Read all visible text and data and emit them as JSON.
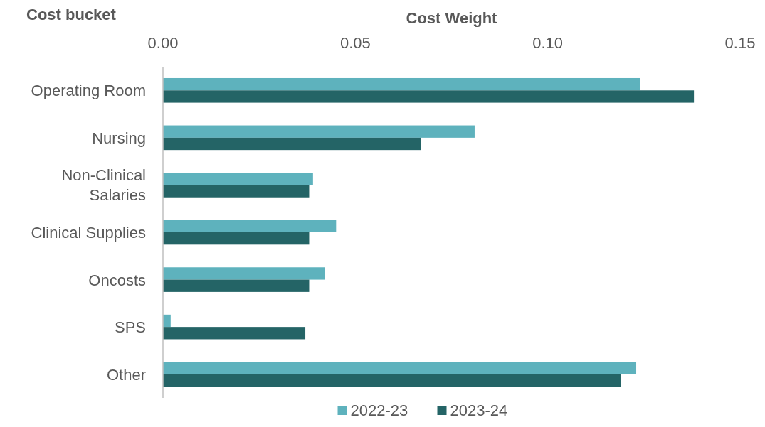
{
  "chart_data": {
    "type": "bar",
    "orientation": "horizontal",
    "xlabel": "Cost Weight",
    "ylabel": "Cost bucket",
    "categories": [
      "Operating Room",
      "Nursing",
      "Non-Clinical Salaries",
      "Clinical Supplies",
      "Oncosts",
      "SPS",
      "Other"
    ],
    "series": [
      {
        "name": "2022-23",
        "color": "#5eb2bd",
        "values": [
          0.124,
          0.081,
          0.039,
          0.045,
          0.042,
          0.002,
          0.123
        ]
      },
      {
        "name": "2023-24",
        "color": "#246466",
        "values": [
          0.138,
          0.067,
          0.038,
          0.038,
          0.038,
          0.037,
          0.119
        ]
      }
    ],
    "xlim": [
      0,
      0.15
    ],
    "xticks": [
      {
        "value": 0,
        "label": "0.00"
      },
      {
        "value": 0.05,
        "label": "0.05"
      },
      {
        "value": 0.1,
        "label": "0.10"
      },
      {
        "value": 0.15,
        "label": "0.15"
      }
    ],
    "grid": false,
    "legend": "bottom"
  }
}
